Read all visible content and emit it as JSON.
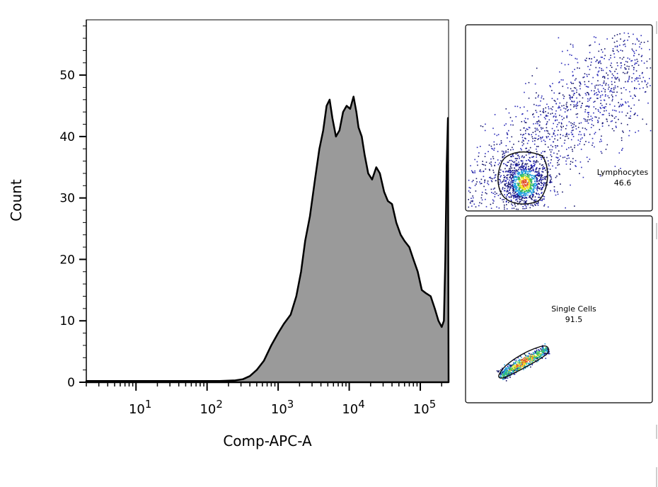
{
  "chart_data": [
    {
      "type": "area",
      "xlabel": "Comp-APC-A",
      "ylabel": "Count",
      "x_scale": "log",
      "xlim": [
        2,
        250000
      ],
      "ylim": [
        0,
        59
      ],
      "yticks": [
        0,
        10,
        20,
        30,
        40,
        50
      ],
      "xticks": [
        {
          "base": "10",
          "exp": "1"
        },
        {
          "base": "10",
          "exp": "2"
        },
        {
          "base": "10",
          "exp": "3"
        },
        {
          "base": "10",
          "exp": "4"
        },
        {
          "base": "10",
          "exp": "5"
        }
      ],
      "fill_color": "#9a9a9a",
      "line_color": "#000000",
      "series": [
        {
          "x": [
            2,
            150,
            250,
            320,
            400,
            500,
            630,
            800,
            1000,
            1200,
            1500,
            1800,
            2100,
            2400,
            2800,
            3300,
            3800,
            4300,
            4800,
            5300,
            5800,
            6500,
            7300,
            8200,
            9200,
            10300,
            11500,
            12600,
            13500,
            15000,
            16500,
            18500,
            21000,
            24000,
            27000,
            31000,
            35000,
            40000,
            46000,
            53000,
            60000,
            70000,
            80000,
            92000,
            105000,
            120000,
            140000,
            160000,
            180000,
            200000,
            215000,
            225000,
            235000,
            245000,
            250000
          ],
          "y": [
            0.2,
            0.2,
            0.3,
            0.5,
            1,
            2,
            3.5,
            6,
            8,
            9.5,
            11,
            14,
            18,
            23,
            27,
            33,
            38,
            41,
            45,
            46,
            43,
            40,
            41,
            44,
            45,
            44.5,
            46.5,
            44,
            41.5,
            40,
            37,
            34,
            33,
            35,
            34,
            31,
            29.5,
            29,
            26,
            24,
            23,
            22,
            20,
            18,
            15,
            14.5,
            14,
            12,
            10,
            9,
            10,
            20,
            35,
            43,
            0
          ]
        }
      ]
    },
    {
      "type": "scatter",
      "gate": {
        "name": "Lymphocytes",
        "value": "46.6"
      }
    },
    {
      "type": "scatter",
      "gate": {
        "name": "Single Cells",
        "value": "91.5"
      }
    }
  ]
}
